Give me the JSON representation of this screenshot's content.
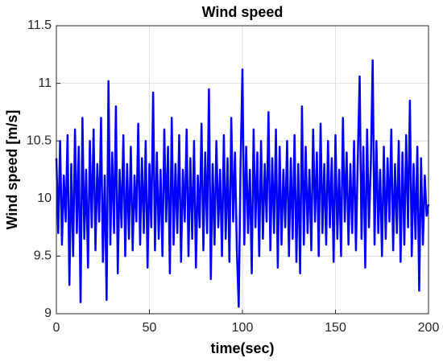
{
  "chart_data": {
    "type": "line",
    "title": "Wind speed",
    "xlabel": "time(sec)",
    "ylabel": "Wind speed [m/s]",
    "x": [
      0,
      1,
      2,
      3,
      4,
      5,
      6,
      7,
      8,
      9,
      10,
      11,
      12,
      13,
      14,
      15,
      16,
      17,
      18,
      19,
      20,
      21,
      22,
      23,
      24,
      25,
      26,
      27,
      28,
      29,
      30,
      31,
      32,
      33,
      34,
      35,
      36,
      37,
      38,
      39,
      40,
      41,
      42,
      43,
      44,
      45,
      46,
      47,
      48,
      49,
      50,
      51,
      52,
      53,
      54,
      55,
      56,
      57,
      58,
      59,
      60,
      61,
      62,
      63,
      64,
      65,
      66,
      67,
      68,
      69,
      70,
      71,
      72,
      73,
      74,
      75,
      76,
      77,
      78,
      79,
      80,
      81,
      82,
      83,
      84,
      85,
      86,
      87,
      88,
      89,
      90,
      91,
      92,
      93,
      94,
      95,
      96,
      97,
      98,
      99,
      100,
      101,
      102,
      103,
      104,
      105,
      106,
      107,
      108,
      109,
      110,
      111,
      112,
      113,
      114,
      115,
      116,
      117,
      118,
      119,
      120,
      121,
      122,
      123,
      124,
      125,
      126,
      127,
      128,
      129,
      130,
      131,
      132,
      133,
      134,
      135,
      136,
      137,
      138,
      139,
      140,
      141,
      142,
      143,
      144,
      145,
      146,
      147,
      148,
      149,
      150,
      151,
      152,
      153,
      154,
      155,
      156,
      157,
      158,
      159,
      160,
      161,
      162,
      163,
      164,
      165,
      166,
      167,
      168,
      169,
      170,
      171,
      172,
      173,
      174,
      175,
      176,
      177,
      178,
      179,
      180,
      181,
      182,
      183,
      184,
      185,
      186,
      187,
      188,
      189,
      190,
      191,
      192,
      193,
      194,
      195,
      196,
      197,
      198,
      199,
      200
    ],
    "series": [
      {
        "name": "Wind speed",
        "color": "#0000ff",
        "values": [
          10.35,
          9.7,
          10.5,
          9.6,
          10.2,
          9.8,
          10.55,
          9.25,
          10.3,
          9.5,
          10.6,
          9.7,
          10.45,
          9.1,
          10.7,
          9.65,
          10.25,
          9.4,
          10.5,
          9.75,
          10.6,
          9.55,
          10.3,
          9.8,
          10.7,
          9.45,
          10.2,
          9.12,
          11.02,
          9.6,
          10.4,
          9.7,
          10.8,
          9.35,
          10.25,
          9.75,
          10.55,
          9.5,
          10.3,
          9.65,
          10.45,
          9.55,
          10.2,
          9.8,
          10.65,
          9.6,
          10.35,
          9.7,
          10.5,
          9.4,
          10.3,
          9.75,
          10.92,
          9.55,
          10.4,
          9.65,
          10.25,
          9.5,
          10.6,
          9.8,
          10.45,
          9.35,
          10.7,
          9.6,
          10.3,
          9.7,
          10.55,
          9.45,
          10.25,
          9.8,
          10.6,
          9.5,
          10.35,
          9.65,
          10.5,
          9.4,
          10.2,
          9.75,
          10.65,
          9.55,
          10.4,
          9.7,
          10.95,
          9.3,
          10.3,
          9.6,
          10.5,
          9.75,
          10.25,
          9.5,
          10.55,
          9.65,
          10.35,
          9.45,
          10.7,
          9.8,
          10.4,
          9.55,
          9.06,
          10.3,
          11.12,
          9.6,
          10.45,
          9.7,
          10.25,
          9.35,
          10.6,
          9.75,
          10.4,
          9.5,
          10.5,
          9.65,
          10.3,
          9.8,
          10.75,
          9.55,
          10.35,
          9.7,
          10.6,
          9.4,
          10.45,
          9.6,
          10.25,
          9.75,
          10.5,
          9.5,
          10.35,
          9.65,
          10.55,
          9.45,
          10.3,
          9.35,
          10.8,
          9.6,
          10.45,
          9.7,
          10.25,
          9.55,
          10.6,
          9.8,
          10.4,
          9.5,
          10.65,
          9.7,
          10.3,
          9.6,
          10.5,
          9.75,
          10.35,
          9.45,
          10.55,
          9.65,
          10.25,
          9.5,
          10.7,
          9.8,
          10.4,
          9.6,
          10.3,
          9.7,
          10.5,
          9.55,
          10.35,
          11.06,
          9.65,
          10.45,
          9.4,
          10.6,
          9.75,
          10.3,
          11.2,
          9.6,
          10.5,
          9.7,
          10.25,
          9.5,
          10.45,
          9.65,
          10.35,
          9.8,
          10.6,
          9.55,
          10.3,
          9.7,
          10.5,
          9.45,
          10.4,
          9.6,
          10.55,
          9.75,
          10.85,
          9.5,
          10.3,
          9.65,
          10.45,
          9.2,
          10.35,
          9.6,
          10.2,
          9.85,
          9.95
        ]
      }
    ],
    "xlim": [
      0,
      200
    ],
    "xticks": [
      0,
      50,
      100,
      150,
      200
    ],
    "ylim": [
      9,
      11.5
    ],
    "yticks": [
      9,
      9.5,
      10,
      10.5,
      11,
      11.5
    ],
    "grid": true
  }
}
